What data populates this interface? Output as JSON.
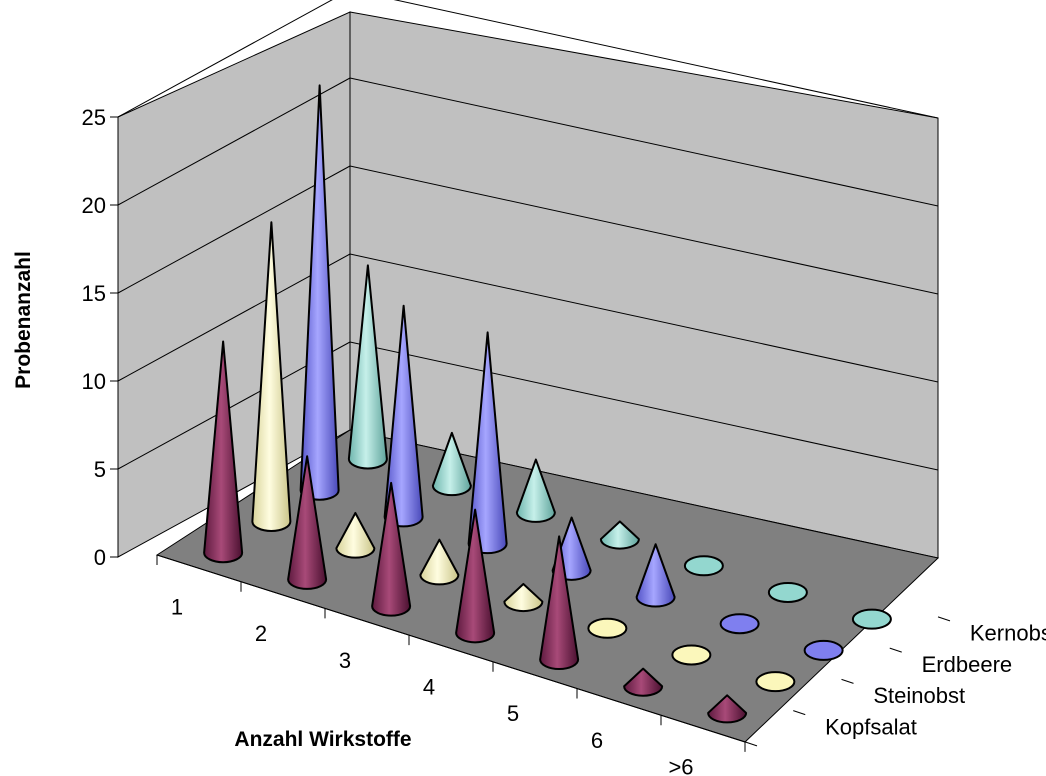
{
  "chart_data": {
    "type": "bar",
    "subtype": "3d-cone",
    "title": "",
    "xlabel": "Anzahl Wirkstoffe",
    "ylabel": "Probenanzahl",
    "categories": [
      "1",
      "2",
      "3",
      "4",
      "5",
      "6",
      ">6"
    ],
    "depth_labels": [
      "Kernobst",
      "Erdbeere",
      "Steinobst",
      "Kopfsalat"
    ],
    "yticks": [
      "0",
      "5",
      "10",
      "15",
      "20",
      "25"
    ],
    "ylim": [
      0,
      25
    ],
    "grid": true,
    "series": [
      {
        "name": "Kopfsalat",
        "color": "#8b2a5c",
        "values": [
          12,
          7,
          7,
          7,
          7,
          1,
          1
        ]
      },
      {
        "name": "Steinobst",
        "color": "#fbf7bb",
        "values": [
          17,
          2,
          2,
          1,
          0,
          0,
          0
        ]
      },
      {
        "name": "Erdbeere",
        "color": "#7f7fef",
        "values": [
          23,
          12,
          12,
          3,
          3,
          0,
          0
        ]
      },
      {
        "name": "Kernobst",
        "color": "#93d7cf",
        "values": [
          11,
          3,
          3,
          1,
          0,
          0,
          0
        ]
      }
    ]
  }
}
